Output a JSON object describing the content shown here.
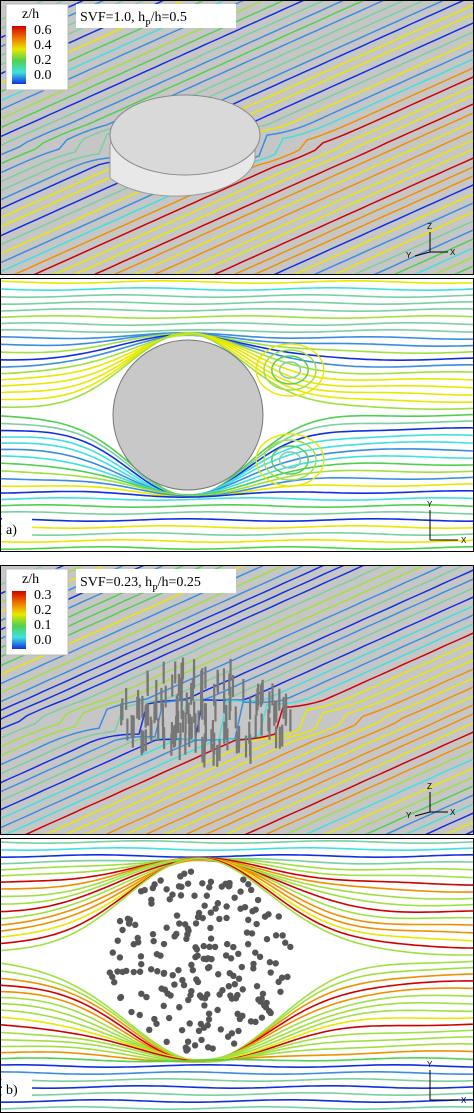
{
  "panels": [
    {
      "legend": {
        "title": "z/h",
        "ticks": [
          "0.6",
          "0.4",
          "0.2",
          "0.0"
        ]
      },
      "caption": {
        "prefix": "SVF=1.0, h",
        "subscript": "P",
        "suffix": "/h=0.5"
      },
      "axes": [
        "Y",
        "Z",
        "X"
      ]
    },
    {
      "axes": [
        "Y",
        "X"
      ],
      "label": "a)"
    },
    {
      "legend": {
        "title": "z/h",
        "ticks": [
          "0.3",
          "0.2",
          "0.1",
          "0.0"
        ]
      },
      "caption": {
        "prefix": "SVF=0.23, h",
        "subscript": "P",
        "suffix": "/h=0.25"
      },
      "axes": [
        "Y",
        "Z",
        "X"
      ]
    },
    {
      "axes": [
        "Y",
        "X"
      ],
      "label": "b)"
    }
  ]
}
